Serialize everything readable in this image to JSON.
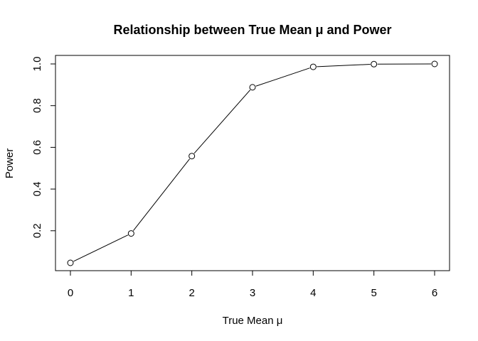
{
  "chart_data": {
    "type": "line",
    "title": "Relationship between True Mean μ and Power",
    "xlabel": "True Mean μ",
    "ylabel": "Power",
    "x": [
      0,
      1,
      2,
      3,
      4,
      5,
      6
    ],
    "series": [
      {
        "values": [
          0.046,
          0.187,
          0.558,
          0.888,
          0.986,
          0.999,
          1.0
        ]
      }
    ],
    "xlim": [
      0,
      6
    ],
    "ylim": [
      0.046,
      1.0
    ],
    "xticks": [
      0,
      1,
      2,
      3,
      4,
      5,
      6
    ],
    "yticks": [
      0.2,
      0.4,
      0.6,
      0.8,
      1.0
    ],
    "xtick_labels": [
      "0",
      "1",
      "2",
      "3",
      "4",
      "5",
      "6"
    ],
    "ytick_labels": [
      "0.2",
      "0.4",
      "0.6",
      "0.8",
      "1.0"
    ],
    "marker": "open-circle",
    "line_color": "#000000",
    "grid": false,
    "legend": "none"
  }
}
